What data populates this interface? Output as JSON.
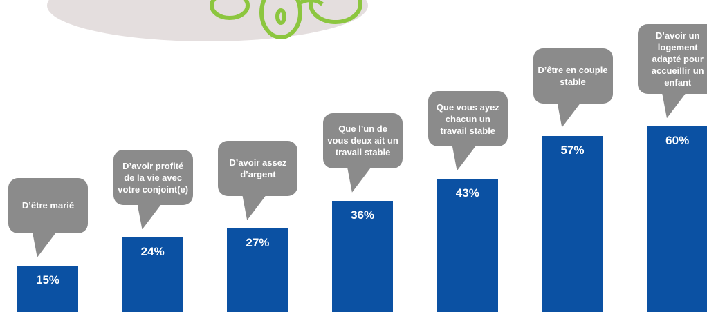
{
  "chart_data": {
    "type": "bar",
    "categories": [
      "D’être marié",
      "D’avoir profité de la vie avec votre conjoint(e)",
      "D’avoir assez d’argent",
      "Que l’un de vous deux ait un travail stable",
      "Que vous ayez chacun un travail stable",
      "D’être en couple stable",
      "D’avoir un logement adapté pour accueillir un enfant"
    ],
    "values": [
      15,
      24,
      27,
      36,
      43,
      57,
      60
    ],
    "value_labels": [
      "15%",
      "24%",
      "27%",
      "36%",
      "43%",
      "57%",
      "60%"
    ],
    "color": "#0b51a3",
    "bubble_color": "#8b8b8b",
    "ylim": [
      0,
      100
    ]
  }
}
